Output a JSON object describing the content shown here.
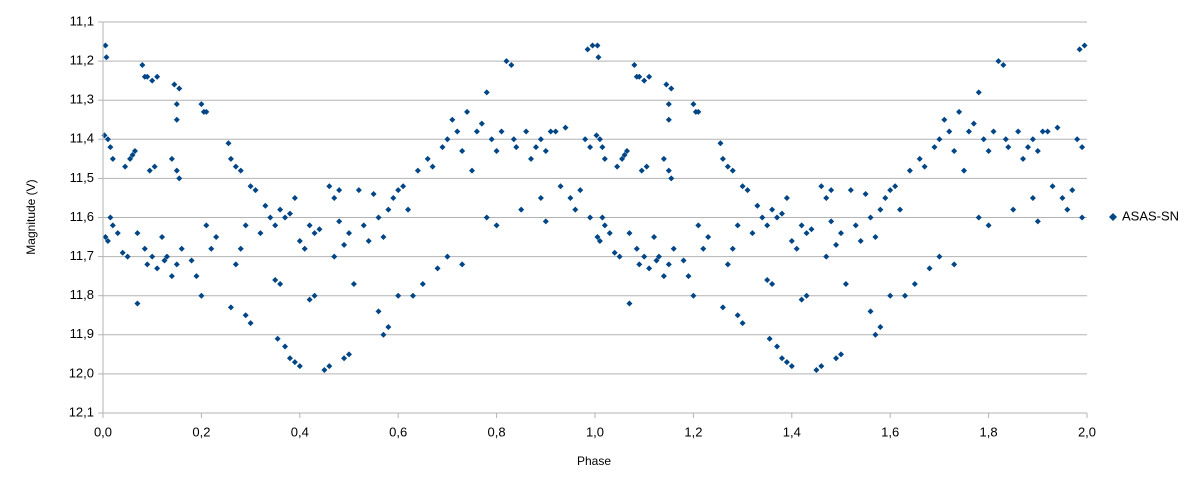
{
  "chart_data": {
    "type": "scatter",
    "xlabel": "Phase",
    "ylabel": "Magnitude (V)",
    "xlim": [
      0,
      2
    ],
    "ylim": [
      12.1,
      11.1
    ],
    "xticks": [
      {
        "value": 0,
        "label": "0,0"
      },
      {
        "value": 0.2,
        "label": "0,2"
      },
      {
        "value": 0.4,
        "label": "0,4"
      },
      {
        "value": 0.6,
        "label": "0,6"
      },
      {
        "value": 0.8,
        "label": "0,8"
      },
      {
        "value": 1,
        "label": "1,0"
      },
      {
        "value": 1.2,
        "label": "1,2"
      },
      {
        "value": 1.4,
        "label": "1,4"
      },
      {
        "value": 1.6,
        "label": "1,6"
      },
      {
        "value": 1.8,
        "label": "1,8"
      },
      {
        "value": 2,
        "label": "2,0"
      }
    ],
    "yticks": [
      {
        "value": 11.1,
        "label": "11,1"
      },
      {
        "value": 11.2,
        "label": "11,2"
      },
      {
        "value": 11.3,
        "label": "11,3"
      },
      {
        "value": 11.4,
        "label": "11,4"
      },
      {
        "value": 11.5,
        "label": "11,5"
      },
      {
        "value": 11.6,
        "label": "11,6"
      },
      {
        "value": 11.7,
        "label": "11,7"
      },
      {
        "value": 11.8,
        "label": "11,8"
      },
      {
        "value": 11.9,
        "label": "11,9"
      },
      {
        "value": 12.0,
        "label": "12,0"
      },
      {
        "value": 12.1,
        "label": "12,1"
      }
    ],
    "grid": true,
    "legend": "right",
    "x": [
      0.005,
      0.007,
      0.003,
      0.01,
      0.015,
      0.02,
      0.005,
      0.01,
      0.015,
      0.02,
      0.03,
      0.04,
      0.05,
      0.045,
      0.055,
      0.06,
      0.065,
      0.07,
      0.07,
      0.08,
      0.085,
      0.09,
      0.1,
      0.11,
      0.085,
      0.09,
      0.1,
      0.11,
      0.095,
      0.105,
      0.12,
      0.125,
      0.13,
      0.14,
      0.15,
      0.14,
      0.15,
      0.155,
      0.145,
      0.155,
      0.15,
      0.15,
      0.16,
      0.18,
      0.19,
      0.2,
      0.2,
      0.205,
      0.21,
      0.21,
      0.23,
      0.22,
      0.255,
      0.26,
      0.27,
      0.28,
      0.26,
      0.27,
      0.28,
      0.29,
      0.3,
      0.3,
      0.29,
      0.31,
      0.32,
      0.33,
      0.34,
      0.35,
      0.36,
      0.37,
      0.38,
      0.355,
      0.37,
      0.35,
      0.36,
      0.38,
      0.39,
      0.4,
      0.4,
      0.41,
      0.39,
      0.42,
      0.43,
      0.42,
      0.43,
      0.44,
      0.45,
      0.46,
      0.46,
      0.47,
      0.48,
      0.49,
      0.5,
      0.47,
      0.48,
      0.49,
      0.5,
      0.51,
      0.52,
      0.53,
      0.54,
      0.55,
      0.56,
      0.57,
      0.58,
      0.56,
      0.57,
      0.58,
      0.59,
      0.6,
      0.6,
      0.61,
      0.62,
      0.63,
      0.64,
      0.65,
      0.66,
      0.67,
      0.68,
      0.69,
      0.7,
      0.7,
      0.71,
      0.72,
      0.73,
      0.73,
      0.74,
      0.75,
      0.76,
      0.77,
      0.78,
      0.78,
      0.79,
      0.8,
      0.8,
      0.81,
      0.82,
      0.83,
      0.835,
      0.84,
      0.85,
      0.86,
      0.87,
      0.88,
      0.89,
      0.9,
      0.89,
      0.9,
      0.91,
      0.92,
      0.93,
      0.94,
      0.95,
      0.96,
      0.97,
      0.98,
      0.99,
      0.99,
      0.985,
      0.995,
      1.005,
      1.007,
      1.003,
      1.01,
      1.015,
      1.02,
      1.005,
      1.01,
      1.015,
      1.02,
      1.03,
      1.04,
      1.05,
      1.045,
      1.055,
      1.06,
      1.065,
      1.07,
      1.07,
      1.08,
      1.085,
      1.09,
      1.1,
      1.11,
      1.085,
      1.09,
      1.1,
      1.11,
      1.095,
      1.105,
      1.12,
      1.125,
      1.13,
      1.14,
      1.15,
      1.14,
      1.15,
      1.155,
      1.145,
      1.155,
      1.15,
      1.15,
      1.16,
      1.18,
      1.19,
      1.2,
      1.2,
      1.205,
      1.21,
      1.21,
      1.23,
      1.22,
      1.255,
      1.26,
      1.27,
      1.28,
      1.26,
      1.27,
      1.28,
      1.29,
      1.3,
      1.3,
      1.29,
      1.31,
      1.32,
      1.33,
      1.34,
      1.35,
      1.36,
      1.37,
      1.38,
      1.355,
      1.37,
      1.35,
      1.36,
      1.38,
      1.39,
      1.4,
      1.4,
      1.41,
      1.39,
      1.42,
      1.43,
      1.42,
      1.43,
      1.44,
      1.45,
      1.46,
      1.46,
      1.47,
      1.48,
      1.49,
      1.5,
      1.47,
      1.48,
      1.49,
      1.5,
      1.51,
      1.52,
      1.53,
      1.54,
      1.55,
      1.56,
      1.57,
      1.58,
      1.56,
      1.57,
      1.58,
      1.59,
      1.6,
      1.6,
      1.61,
      1.62,
      1.63,
      1.64,
      1.65,
      1.66,
      1.67,
      1.68,
      1.69,
      1.7,
      1.7,
      1.71,
      1.72,
      1.73,
      1.73,
      1.74,
      1.75,
      1.76,
      1.77,
      1.78,
      1.78,
      1.79,
      1.8,
      1.8,
      1.81,
      1.82,
      1.83,
      1.835,
      1.84,
      1.85,
      1.86,
      1.87,
      1.88,
      1.89,
      1.9,
      1.89,
      1.9,
      1.91,
      1.92,
      1.93,
      1.94,
      1.95,
      1.96,
      1.97,
      1.98,
      1.99,
      1.99,
      1.985,
      1.995
    ],
    "series": [
      {
        "name": "ASAS-SN",
        "color": "#004586",
        "values": [
          11.16,
          11.19,
          11.39,
          11.4,
          11.42,
          11.45,
          11.65,
          11.66,
          11.6,
          11.62,
          11.64,
          11.69,
          11.7,
          11.47,
          11.45,
          11.44,
          11.43,
          11.64,
          11.82,
          11.21,
          11.24,
          11.24,
          11.25,
          11.24,
          11.68,
          11.72,
          11.7,
          11.73,
          11.48,
          11.47,
          11.65,
          11.71,
          11.7,
          11.75,
          11.72,
          11.45,
          11.48,
          11.5,
          11.26,
          11.27,
          11.31,
          11.35,
          11.68,
          11.71,
          11.75,
          11.8,
          11.31,
          11.33,
          11.33,
          11.62,
          11.65,
          11.68,
          11.41,
          11.45,
          11.47,
          11.48,
          11.83,
          11.72,
          11.68,
          11.85,
          11.87,
          11.52,
          11.62,
          11.53,
          11.64,
          11.57,
          11.6,
          11.62,
          11.58,
          11.6,
          11.59,
          11.91,
          11.93,
          11.76,
          11.77,
          11.96,
          11.97,
          11.98,
          11.66,
          11.68,
          11.55,
          11.81,
          11.8,
          11.62,
          11.64,
          11.63,
          11.99,
          11.98,
          11.52,
          11.55,
          11.61,
          11.67,
          11.64,
          11.7,
          11.53,
          11.96,
          11.95,
          11.77,
          11.53,
          11.62,
          11.66,
          11.54,
          11.6,
          11.9,
          11.88,
          11.84,
          11.65,
          11.58,
          11.55,
          11.53,
          11.8,
          11.52,
          11.58,
          11.8,
          11.48,
          11.77,
          11.45,
          11.47,
          11.73,
          11.42,
          11.4,
          11.7,
          11.35,
          11.38,
          11.43,
          11.72,
          11.33,
          11.48,
          11.38,
          11.36,
          11.28,
          11.6,
          11.4,
          11.62,
          11.43,
          11.38,
          11.2,
          11.21,
          11.4,
          11.42,
          11.58,
          11.38,
          11.45,
          11.42,
          11.4,
          11.43,
          11.55,
          11.61,
          11.38,
          11.38,
          11.52,
          11.37,
          11.55,
          11.58,
          11.53,
          11.4,
          11.42,
          11.6,
          11.17,
          11.16,
          11.16,
          11.19,
          11.39,
          11.4,
          11.42,
          11.45,
          11.65,
          11.66,
          11.6,
          11.62,
          11.64,
          11.69,
          11.7,
          11.47,
          11.45,
          11.44,
          11.43,
          11.64,
          11.82,
          11.21,
          11.24,
          11.24,
          11.25,
          11.24,
          11.68,
          11.72,
          11.7,
          11.73,
          11.48,
          11.47,
          11.65,
          11.71,
          11.7,
          11.75,
          11.72,
          11.45,
          11.48,
          11.5,
          11.26,
          11.27,
          11.31,
          11.35,
          11.68,
          11.71,
          11.75,
          11.8,
          11.31,
          11.33,
          11.33,
          11.62,
          11.65,
          11.68,
          11.41,
          11.45,
          11.47,
          11.48,
          11.83,
          11.72,
          11.68,
          11.85,
          11.87,
          11.52,
          11.62,
          11.53,
          11.64,
          11.57,
          11.6,
          11.62,
          11.58,
          11.6,
          11.59,
          11.91,
          11.93,
          11.76,
          11.77,
          11.96,
          11.97,
          11.98,
          11.66,
          11.68,
          11.55,
          11.81,
          11.8,
          11.62,
          11.64,
          11.63,
          11.99,
          11.98,
          11.52,
          11.55,
          11.61,
          11.67,
          11.64,
          11.7,
          11.53,
          11.96,
          11.95,
          11.77,
          11.53,
          11.62,
          11.66,
          11.54,
          11.6,
          11.9,
          11.88,
          11.84,
          11.65,
          11.58,
          11.55,
          11.53,
          11.8,
          11.52,
          11.58,
          11.8,
          11.48,
          11.77,
          11.45,
          11.47,
          11.73,
          11.42,
          11.4,
          11.7,
          11.35,
          11.38,
          11.43,
          11.72,
          11.33,
          11.48,
          11.38,
          11.36,
          11.28,
          11.6,
          11.4,
          11.62,
          11.43,
          11.38,
          11.2,
          11.21,
          11.4,
          11.42,
          11.58,
          11.38,
          11.45,
          11.42,
          11.4,
          11.43,
          11.55,
          11.61,
          11.38,
          11.38,
          11.52,
          11.37,
          11.55,
          11.58,
          11.53,
          11.4,
          11.42,
          11.6,
          11.17,
          11.16
        ]
      }
    ]
  }
}
